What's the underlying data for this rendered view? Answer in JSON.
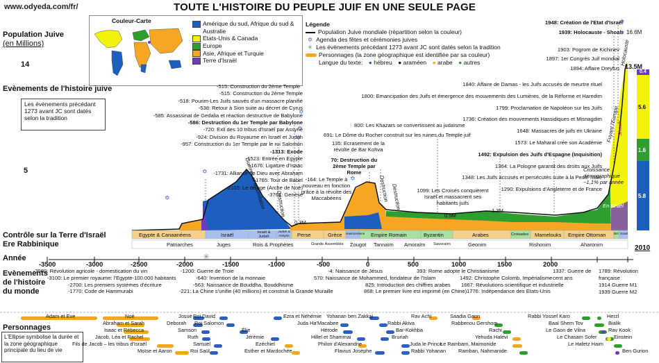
{
  "site": "www.odyeda.com/fr/",
  "title": "TOUTE L'HISTOIRE DU PEUPLE JUIF EN UNE SEULE PAGE",
  "axis": {
    "population_label_line1": "Population Juive",
    "population_label_line2": "(en Millions)",
    "y_ticks": [
      "14",
      "10",
      "5"
    ],
    "events_label": "Evènements de l'histoire juive",
    "control_label": "Contrôle sur la Terre d'Israël",
    "era_label": "Ere Rabbinique",
    "year_label": "Année",
    "year_ticks": [
      "-3500",
      "-3000",
      "-2500",
      "-2000",
      "-1500",
      "-1000",
      "-500",
      "0",
      "500",
      "1000",
      "1500",
      "2000"
    ],
    "world_events_label1": "Evènements",
    "world_events_label2": "de l'histoire",
    "world_events_label3": "du monde",
    "people_label": "Personnages",
    "sun_symbol": "✳",
    "star_symbol": "✡"
  },
  "color_map": {
    "title": "Couleur-Carte",
    "items": [
      {
        "label": "Amérique du sud, Afrique du sud & Australie",
        "color": "#1d5fbf"
      },
      {
        "label": "Etats-Unis & Canada",
        "color": "#f2f20a"
      },
      {
        "label": "Europe",
        "color": "#2e9e2e"
      },
      {
        "label": "Asie, Afrique et Turquie",
        "color": "#f5a623"
      },
      {
        "label": "Terre d'Israël",
        "color": "#6c3cbf"
      }
    ]
  },
  "legend": {
    "title": "Légende",
    "items": [
      "Population Juive mondiale (répartition selon la couleur)",
      "Agenda des fêtes et cérémonies juives",
      "Les évènements précédant 1273 avant JC sont datés selon la tradition",
      "Personnages (la zone géographique est identifiée par sa couleur)"
    ],
    "language_label": "Langue du texte:",
    "languages": [
      {
        "label": "hébreu",
        "color": "#2c5fbf"
      },
      {
        "label": "araméen",
        "color": "#111111"
      },
      {
        "label": "arabe",
        "color": "#f5a623"
      },
      {
        "label": "autres",
        "color": "#2e9e2e"
      }
    ]
  },
  "callout_tradition": "Les évènements précédant 1273 avant JC sont datés selon la tradition",
  "callout_people": "L'Ellipse symbolise la durée et la zone géographique principale du lieu de vie",
  "events_left": [
    "-515: Construction du 2ème Temple",
    "-518: Pourim-Les Juifs sauvés d'un massacre planifié",
    "-538: Retour à Sion suite au décret de Cyrus",
    "-585: Assassinat de Gedalia et réaction destructive de Babylone",
    "-586: Destruction du 1er Temple par Babylone",
    "-720: Exil des 10 tribus d'Israël par Assyrie",
    "-924: Division du Royaume en Israël et Judah",
    "-957: Construction du 1er Temple par le roi Salomon",
    "-1313: Exode",
    "-1523: Entrée en Egypte",
    "-1676: Ligature d'Isaac",
    "-1731: Alliance de Dieu avec Abraham",
    "-1765: Tour de Babel",
    "-2105: Le déluge (Arche de Noé)",
    "-3761: Genèse"
  ],
  "events_mid": [
    "691: Le Dôme du Rocher construit sur les ruines du Temple juif",
    "135: Ecrasement de la révolte de Bar Kohva",
    "70: Destruction du 2ème Temple par Rome",
    "-164: Le Temple à nouveau en fonction grâce à la révolte des Maccabéens",
    "800: Les Khazars se convertissent au judaïsme",
    "1099: Les Croisés conquièrent Israël et massacrent ses habitants juifs"
  ],
  "events_right": [
    "1948: Création de l'Etat d'Israël",
    "1939: Holocauste - Shoah",
    "1903: Pogrom de Kichinev",
    "1897: 1er Congrès Juif mondial",
    "1894: Affaire Dreyfus",
    "1840: Affaire de Damas - les Juifs accusés de meurtre rituel",
    "1800: Emancipation des Juifs et émergence des mouvements des Lumières, de la Réforme et Haredim",
    "1799: Proclamation de Napoléon sur les Juifs",
    "1736: Création des mouvements Hassidiques et Misnagdim",
    "1648: Massacres de juifs en Ukraine",
    "1573: Le Maharal crée son Académie",
    "1492: Expulsion des Juifs d'Espagne (Inquisition)",
    "1364: La Pologne garantit des droits aux Juifs",
    "1348: Les Juifs accusés et persécutés suite à la Peste noire",
    "1290: Expulsions d'Angleterre et de France"
  ],
  "chart_annotations": {
    "pop_0_3": "0.3M",
    "pop_0_9": "0.9M",
    "pop_1_3": "1.3M",
    "pop_13_5": "13.5M",
    "pop_16_6": "16.6M",
    "assimilation": "Guerres et assimilation",
    "destruction1": "Destruction",
    "destruction2": "Destruction",
    "destruction3": "Destruction",
    "croissance": "Croissance démographique ~1,1% par année",
    "fuyant": "Fuyant l'Europe",
    "shoah": "Shoah",
    "holocauste": "Holocauste",
    "en_israel": "En Israël",
    "bar_values": [
      "0.4",
      "5.6",
      "1.6",
      "5.8"
    ],
    "bar_year": "2010"
  },
  "control_periods": [
    "Egypte & Canaanéens",
    "Israël",
    "Israël & Judah",
    "Judah & Assyrie",
    "Perse",
    "Grèce",
    "Hasmonéens",
    "Empire Romain",
    "Byzantin",
    "Arabes",
    "Croisades",
    "Mamelouks",
    "Empire Ottoman",
    "Brit",
    "Israël"
  ],
  "rabbinic_eras": [
    "Patriarches",
    "Juges",
    "Rois & Prophètes",
    "Grande Assemblée",
    "Zougot",
    "Tannaïm",
    "Amoraïm",
    "Savoraïm",
    "Geonim",
    "Rishonim",
    "Aharonim"
  ],
  "world_events": [
    "-3500: Révolution agricole - domestication du vin",
    "-3100: Le premier royaume: l'Egypte-100.000 habitants",
    "-2700: Les premiers systèmes d'écriture",
    "-1770: Code de Hammurabi",
    "-1200: Guerre de Troie",
    "-640: Invention de la monnaie",
    "-563: Naissance de Bouddha, Bouddhisme",
    "-221: La Chine s'unifie (40 millions) et construit la Grande Muraille",
    "-4: Naissance de Jésus",
    "570: Naissance de Mohammed, fondateur de l'Islam",
    "825: Introduction des chiffres arabes",
    "868: Le premier livre est imprimé (en Chine)",
    "393: Rome adopte le Christianisme",
    "1492: Christophe Colomb, Impérialisme",
    "1667: Révolutions scientifique et industrielle",
    "1776: Indépendance des Etats-Unis",
    "1337: Guerre de cent ans",
    "1789: Révolution française",
    "1914 Guerre M1",
    "1939 Guerre M2"
  ],
  "people": [
    "Adam et Eve",
    "Noé",
    "Abraham et Sarah",
    "Isaac et Rébecca",
    "Jacob, Léa et Rachel",
    "Fils de Jacob – les tribus d'Israël",
    "Moïse et Aaron",
    "Josué",
    "Roi David",
    "Deborah",
    "Roi Salomon",
    "Samson",
    "Élie",
    "Ruth",
    "Jérémie",
    "Samuel",
    "Roi Saül",
    "Ezra et Néhémie",
    "Yohanan ben Zakkai",
    "Juda Ha'Macabee",
    "Rabbi Akiva",
    "Hérode",
    "Bar-Kokhba",
    "Hillel et Shammai",
    "Bruriah",
    "Ezéchiel",
    "Philon d'Alexandrie",
    "Esther et Mardochée",
    "Flavius Josèphe",
    "Rav Achi",
    "Rabbi Yohanan",
    "Juda le Prince",
    "Saadia Gaon",
    "Rabbenou Gershom",
    "Rachi",
    "Yehuda Halevi",
    "Le Rambam, Maimonide",
    "Ramban, Nahmanide",
    "Rabbi Yossef Karo",
    "Baal Shem Tov",
    "Le Gaon de Vilna",
    "Le Chasam Sofer",
    "Le Hafetz Haim",
    "Herzl",
    "Bialik",
    "Rav Kook",
    "Einstein",
    "Ben Gurion"
  ]
}
